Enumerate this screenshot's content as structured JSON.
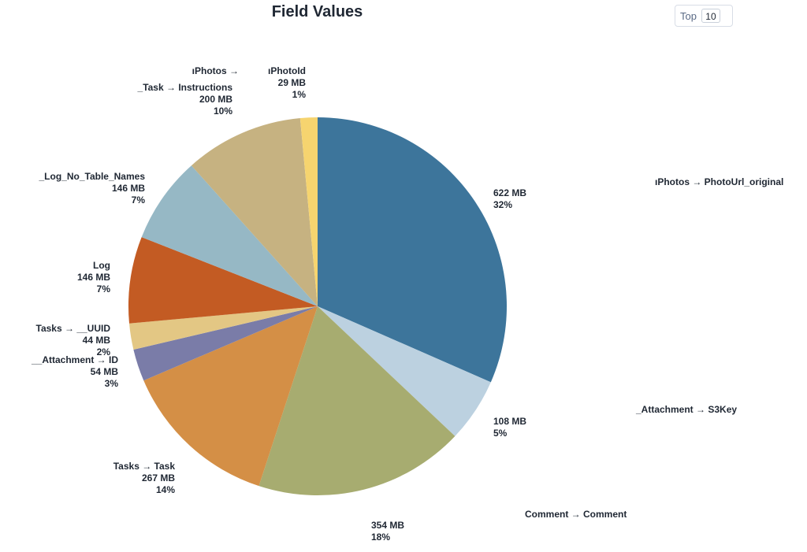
{
  "chart_data": {
    "type": "pie",
    "title": "Field Values",
    "slices": [
      {
        "name": "ıPhotos → PhotoUrl_original",
        "size": "622 MB",
        "pct": "32%",
        "value": 622,
        "color": "#3d759b"
      },
      {
        "name": "_Attachment → S3Key",
        "size": "108 MB",
        "pct": "5%",
        "value": 108,
        "color": "#bcd1e0"
      },
      {
        "name": "Comment → Comment",
        "size": "354 MB",
        "pct": "18%",
        "value": 354,
        "color": "#a7ac70"
      },
      {
        "name": "Tasks → Task",
        "size": "267 MB",
        "pct": "14%",
        "value": 267,
        "color": "#d48f46"
      },
      {
        "name": "__Attachment → ID",
        "size": "54 MB",
        "pct": "3%",
        "value": 54,
        "color": "#7a7ca8"
      },
      {
        "name": "Tasks → __UUID",
        "size": "44 MB",
        "pct": "2%",
        "value": 44,
        "color": "#e3c784"
      },
      {
        "name": "Log",
        "size": "146 MB",
        "pct": "7%",
        "value": 146,
        "color": "#c35b23"
      },
      {
        "name": "_Log_No_Table_Names",
        "size": "146 MB",
        "pct": "7%",
        "value": 146,
        "color": "#96b8c5"
      },
      {
        "name": "_Task → Instructions",
        "size": "200 MB",
        "pct": "10%",
        "value": 200,
        "color": "#c6b281"
      },
      {
        "name": "ıPhotoId",
        "size": "29 MB",
        "pct": "1%",
        "value": 29,
        "color": "#f6d46f"
      }
    ]
  },
  "controls": {
    "top_label": "Top",
    "top_value": "10"
  },
  "extra_labels": {
    "photos_prefix": "ıPhotos →"
  }
}
